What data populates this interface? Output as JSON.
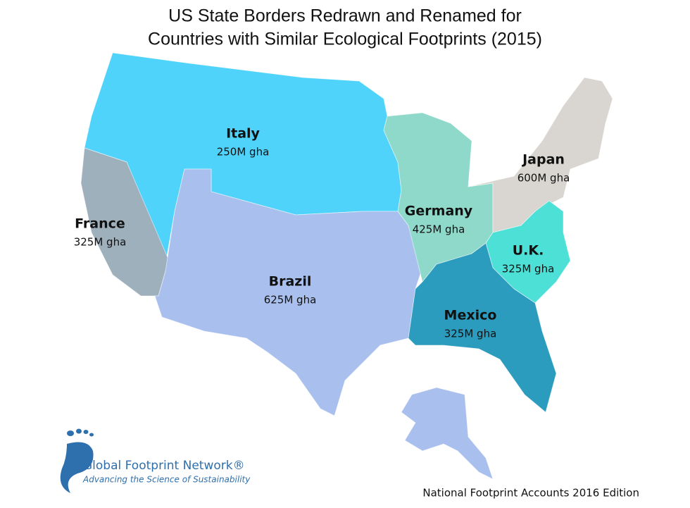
{
  "title": [
    "US State Borders Redrawn and Renamed for",
    "Countries with Similar Ecological Footprints (2015)"
  ],
  "regions": [
    {
      "name": "Italy",
      "footprint": "250M gha"
    },
    {
      "name": "France",
      "footprint": "325M gha"
    },
    {
      "name": "Brazil",
      "footprint": "625M gha"
    },
    {
      "name": "Germany",
      "footprint": "425M gha"
    },
    {
      "name": "Japan",
      "footprint": "600M gha"
    },
    {
      "name": "U.K.",
      "footprint": "325M gha"
    },
    {
      "name": "Mexico",
      "footprint": "325M gha"
    }
  ],
  "logo": {
    "name": "Global Footprint Network®",
    "tagline": "Advancing the Science of Sustainability"
  },
  "source": "National Footprint Accounts 2016 Edition"
}
